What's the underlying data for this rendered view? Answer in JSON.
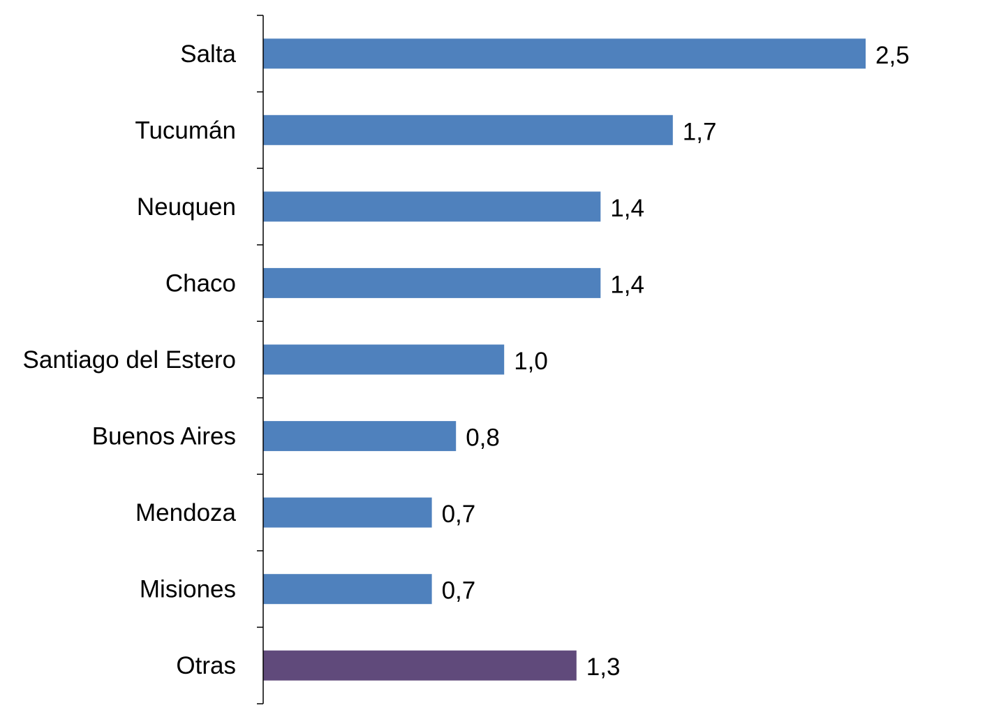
{
  "chart_data": {
    "type": "bar",
    "orientation": "horizontal",
    "categories": [
      "Salta",
      "Tucumán",
      "Neuquen",
      "Chaco",
      "Santiago del Estero",
      "Buenos Aires",
      "Mendoza",
      "Misiones",
      "Otras"
    ],
    "values": [
      2.5,
      1.7,
      1.4,
      1.4,
      1.0,
      0.8,
      0.7,
      0.7,
      1.3
    ],
    "value_labels": [
      "2,5",
      "1,7",
      "1,4",
      "1,4",
      "1,0",
      "0,8",
      "0,7",
      "0,7",
      "1,3"
    ],
    "bar_colors": [
      "#4F81BD",
      "#4F81BD",
      "#4F81BD",
      "#4F81BD",
      "#4F81BD",
      "#4F81BD",
      "#4F81BD",
      "#4F81BD",
      "#604A7B"
    ],
    "title": "",
    "xlabel": "",
    "ylabel": "",
    "grid": false,
    "legend": "none"
  },
  "colors": {
    "primary_bar": "#4F81BD",
    "highlight_bar": "#604A7B",
    "axis": "#000000"
  }
}
